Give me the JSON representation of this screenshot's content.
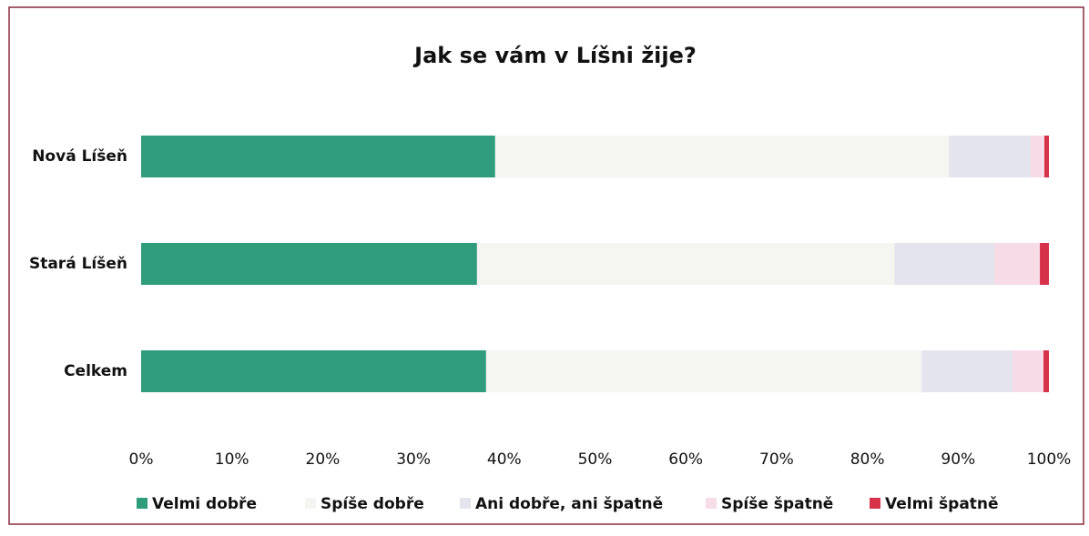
{
  "chart_data": {
    "type": "stacked_barh",
    "title": "Jak se vám v Líšni žije?",
    "categories": [
      "Nová Líšeň",
      "Stará Líšeň",
      "Celkem"
    ],
    "series": [
      {
        "name": "Velmi dobře",
        "color": "#2f9c7c",
        "values": [
          39,
          37,
          38
        ]
      },
      {
        "name": "Spíše dobře",
        "color": "#f5f5f2",
        "values": [
          50,
          46,
          48
        ]
      },
      {
        "name": "Ani dobře, ani špatně",
        "color": "#e4e4ee",
        "values": [
          9,
          11,
          10
        ]
      },
      {
        "name": "Spíše špatně",
        "color": "#f7dbe6",
        "values": [
          1.5,
          5,
          3.4
        ]
      },
      {
        "name": "Velmi špatně",
        "color": "#d6334b",
        "values": [
          0.5,
          1,
          0.6
        ]
      }
    ],
    "xlim": [
      0,
      100
    ],
    "xticks": [
      {
        "value": 0,
        "label": "0%"
      },
      {
        "value": 10,
        "label": "10%"
      },
      {
        "value": 20,
        "label": "20%"
      },
      {
        "value": 30,
        "label": "30%"
      },
      {
        "value": 40,
        "label": "40%"
      },
      {
        "value": 50,
        "label": "50%"
      },
      {
        "value": 60,
        "label": "60%"
      },
      {
        "value": 70,
        "label": "70%"
      },
      {
        "value": 80,
        "label": "80%"
      },
      {
        "value": 90,
        "label": "90%"
      },
      {
        "value": 100,
        "label": "100%"
      }
    ],
    "legend": "bottom"
  }
}
